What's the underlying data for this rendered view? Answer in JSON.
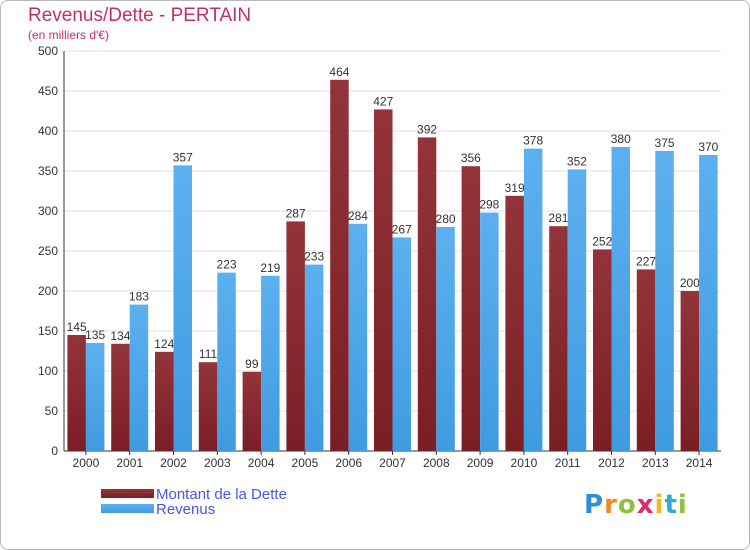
{
  "title": "Revenus/Dette - PERTAIN",
  "subtitle": "(en milliers d'€)",
  "brand": {
    "letters": [
      {
        "char": "P",
        "color": "#2e8fd6"
      },
      {
        "char": "r",
        "color": "#f08a1c"
      },
      {
        "char": "o",
        "color": "#8fc23a"
      },
      {
        "char": "x",
        "color": "#d92e6b"
      },
      {
        "char": "i",
        "color": "#f0b81c"
      },
      {
        "char": "t",
        "color": "#2ea8d6"
      },
      {
        "char": "i",
        "color": "#8fc23a"
      }
    ]
  },
  "legend": {
    "debt_label": "Montant de la Dette",
    "revenue_label": "Revenus"
  },
  "colors": {
    "debt": "#7a1e25",
    "debt_light": "#94343a",
    "revenue": "#3f9be0",
    "revenue_light": "#5db0ef",
    "grid": "#e2e2e2",
    "axis": "#333333"
  },
  "chart_data": {
    "type": "bar",
    "categories": [
      "2000",
      "2001",
      "2002",
      "2003",
      "2004",
      "2005",
      "2006",
      "2007",
      "2008",
      "2009",
      "2010",
      "2011",
      "2012",
      "2013",
      "2014"
    ],
    "series": [
      {
        "name": "Montant de la Dette",
        "values": [
          145,
          134,
          124,
          111,
          99,
          287,
          464,
          427,
          392,
          356,
          319,
          281,
          252,
          227,
          200
        ]
      },
      {
        "name": "Revenus",
        "values": [
          135,
          183,
          357,
          223,
          219,
          233,
          284,
          267,
          280,
          298,
          378,
          352,
          380,
          375,
          370
        ]
      }
    ],
    "yticks": [
      0,
      50,
      100,
      150,
      200,
      250,
      300,
      350,
      400,
      450,
      500
    ],
    "ylim": [
      0,
      500
    ],
    "grid": true
  }
}
